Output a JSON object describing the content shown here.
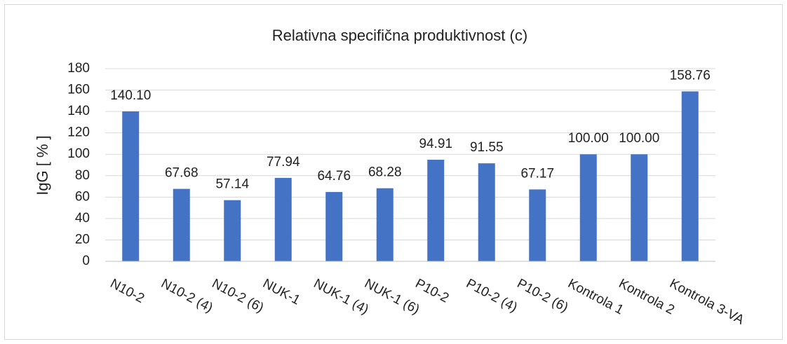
{
  "chart_data": {
    "type": "bar",
    "title": "Relativna specifična produktivnost (c)",
    "y_label": "IgG [ % ]",
    "categories": [
      "N10-2",
      "N10-2 (4)",
      "N10-2 (6)",
      "NUK-1",
      "NUK-1 (4)",
      "NUK-1 (6)",
      "P10-2",
      "P10-2 (4)",
      "P10-2 (6)",
      "Kontrola 1",
      "Kontrola 2",
      "Kontrola 3-VA"
    ],
    "values": [
      140.1,
      67.68,
      57.14,
      77.94,
      64.76,
      68.28,
      94.91,
      91.55,
      67.17,
      100,
      100,
      158.76
    ],
    "value_labels": [
      "140.10",
      "67.68",
      "57.14",
      "77.94",
      "64.76",
      "68.28",
      "94.91",
      "91.55",
      "67.17",
      "100.00",
      "100.00",
      "158.76"
    ],
    "color": "#4472c4",
    "ylim": [
      0,
      180
    ],
    "yticks": [
      0,
      20,
      40,
      60,
      80,
      100,
      120,
      140,
      160,
      180
    ],
    "grid": true
  }
}
